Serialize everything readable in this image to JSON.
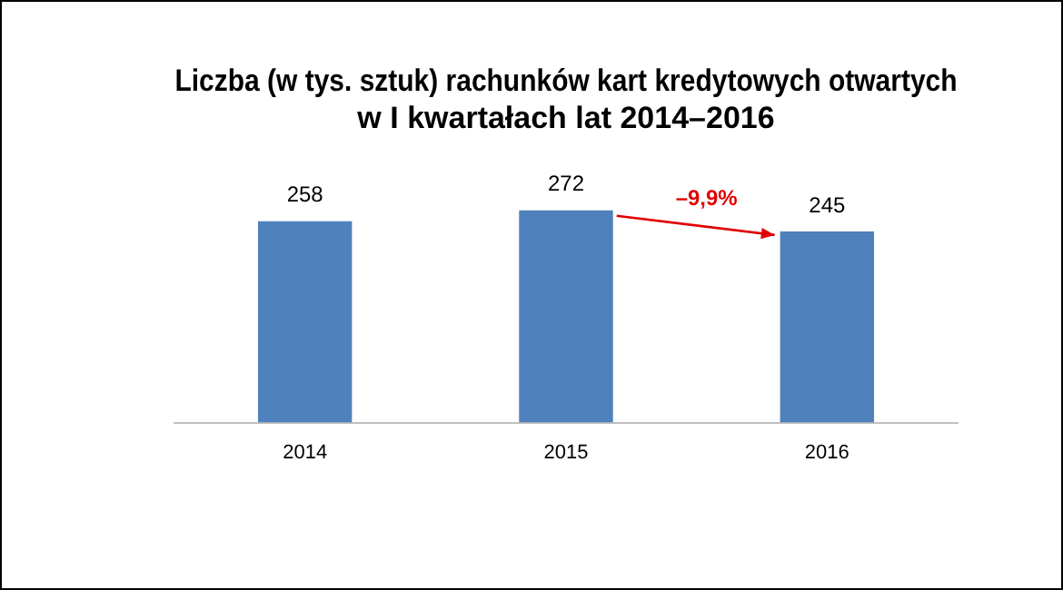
{
  "chart_data": {
    "type": "bar",
    "title": "Liczba (w tys. sztuk) rachunków kart kredytowych otwartych\nw I kwartałach lat 2014–2016",
    "categories": [
      "2014",
      "2015",
      "2016"
    ],
    "values": [
      258,
      272,
      245
    ],
    "color": "#4f81bd",
    "data_labels": true,
    "grid": false,
    "tick_labels": "x",
    "annotations": [
      "–9,9%"
    ]
  }
}
